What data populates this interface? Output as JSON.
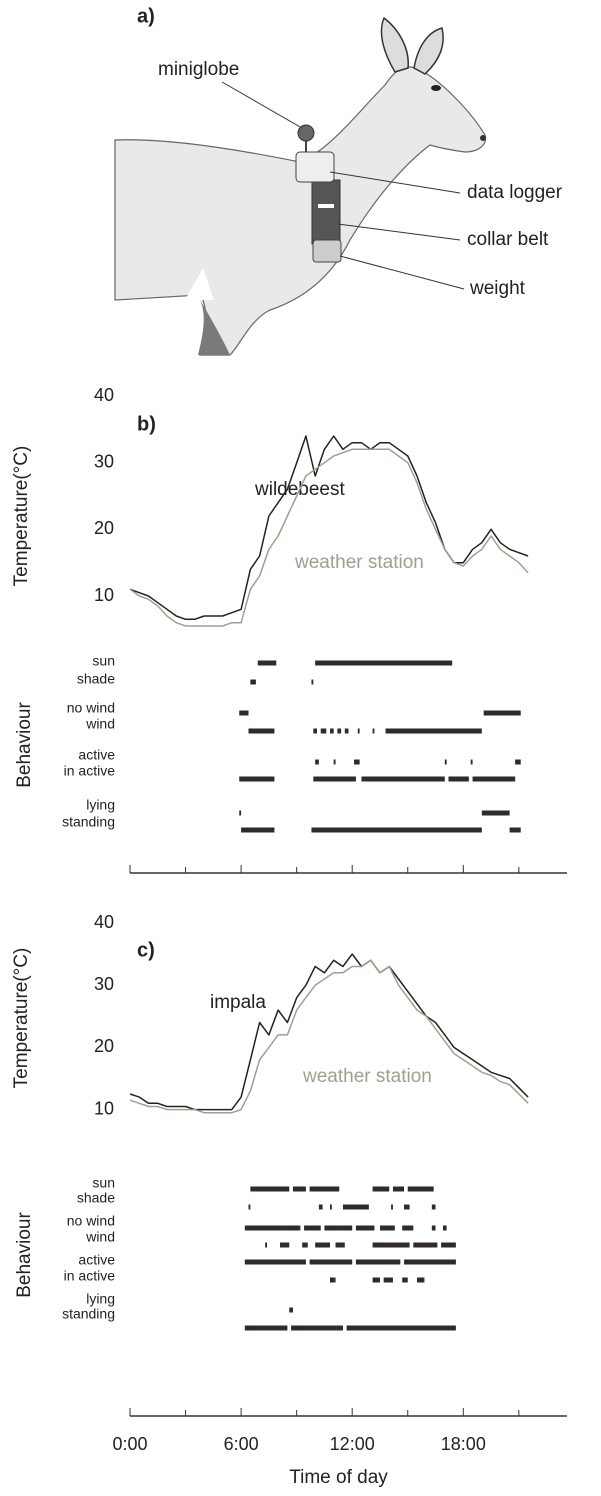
{
  "figure_a": {
    "panel_label": "a)",
    "labels": [
      "miniglobe",
      "data logger",
      "collar belt",
      "weight"
    ]
  },
  "chart_data": [
    {
      "type": "line",
      "panel_label": "b)",
      "ylabel": "Temperature(°C)",
      "behaviour_label": "Behaviour",
      "xlim": [
        0,
        23.6
      ],
      "xticks": [
        0,
        6,
        12,
        18
      ],
      "minor_xticks": [
        3,
        9,
        15,
        21
      ],
      "xtick_labels_shown": false,
      "ylim": [
        4,
        40
      ],
      "yticks": [
        10,
        20,
        30,
        40
      ],
      "x": [
        0,
        0.5,
        1,
        1.5,
        2,
        2.5,
        3,
        3.5,
        4,
        4.5,
        5,
        5.5,
        6,
        6.5,
        7,
        7.5,
        8,
        8.5,
        9,
        9.5,
        10,
        10.5,
        11,
        11.5,
        12,
        12.5,
        13,
        13.5,
        14,
        14.5,
        15,
        15.5,
        16,
        16.5,
        17,
        17.5,
        18,
        18.5,
        19,
        19.5,
        20,
        20.5,
        21,
        21.5
      ],
      "series": [
        {
          "name": "wildebeest",
          "color": "#222222",
          "values": [
            11,
            10.5,
            10,
            9,
            8,
            7,
            6.5,
            6.5,
            7,
            7,
            7,
            7.5,
            8,
            14,
            16,
            22,
            24,
            26,
            30,
            34,
            28,
            32,
            34,
            32,
            33,
            33,
            32,
            33,
            33,
            32,
            31,
            28,
            24,
            21,
            17,
            15,
            15,
            17,
            18,
            20,
            18,
            17,
            16.5,
            16
          ]
        },
        {
          "name": "weather station",
          "color": "#a39e8c",
          "values": [
            11,
            10,
            9.5,
            8.5,
            7,
            6,
            5.5,
            5.5,
            5.5,
            5.5,
            5.5,
            6,
            6,
            11,
            13,
            17,
            19,
            22,
            25,
            28,
            29,
            30,
            31,
            31.5,
            32,
            32,
            32,
            32,
            32,
            31,
            30,
            27,
            23,
            20,
            17,
            15,
            14.5,
            16,
            17,
            19,
            17,
            16,
            15,
            13.5
          ]
        }
      ],
      "behaviour": [
        {
          "label": "sun",
          "intervals": [
            [
              6.9,
              7.9
            ],
            [
              10.0,
              17.4
            ]
          ]
        },
        {
          "label": "shade",
          "intervals": [
            [
              6.5,
              6.8
            ],
            [
              9.8,
              9.9
            ]
          ]
        },
        {
          "label": "no wind",
          "intervals": [
            [
              5.9,
              6.4
            ],
            [
              19.1,
              21.1
            ]
          ]
        },
        {
          "label": "wind",
          "intervals": [
            [
              6.4,
              7.8
            ],
            [
              9.9,
              10.1
            ],
            [
              10.3,
              10.6
            ],
            [
              10.8,
              11.0
            ],
            [
              11.2,
              11.4
            ],
            [
              11.6,
              11.8
            ],
            [
              12.3,
              12.4
            ],
            [
              13.1,
              13.2
            ],
            [
              13.8,
              19.0
            ]
          ]
        },
        {
          "label": "active",
          "intervals": [
            [
              10.0,
              10.2
            ],
            [
              11.0,
              11.1
            ],
            [
              12.1,
              12.4
            ],
            [
              17.0,
              17.1
            ],
            [
              18.4,
              18.5
            ],
            [
              20.8,
              21.1
            ]
          ]
        },
        {
          "label": "in active",
          "intervals": [
            [
              5.9,
              7.8
            ],
            [
              9.9,
              12.2
            ],
            [
              12.5,
              17.0
            ],
            [
              17.2,
              18.3
            ],
            [
              18.5,
              20.8
            ]
          ]
        },
        {
          "label": "lying",
          "intervals": [
            [
              5.9,
              6.0
            ],
            [
              19.0,
              20.5
            ]
          ]
        },
        {
          "label": "standing",
          "intervals": [
            [
              6.0,
              7.8
            ],
            [
              9.8,
              19.0
            ],
            [
              20.5,
              21.1
            ]
          ]
        }
      ]
    },
    {
      "type": "line",
      "panel_label": "c)",
      "ylabel": "Temperature(°C)",
      "behaviour_label": "Behaviour",
      "xlabel": "Time of day",
      "xlim": [
        0,
        23.6
      ],
      "xticks": [
        {
          "value": 0,
          "label": "0:00"
        },
        {
          "value": 6,
          "label": "6:00"
        },
        {
          "value": 12,
          "label": "12:00"
        },
        {
          "value": 18,
          "label": "18:00"
        }
      ],
      "minor_xticks": [
        3,
        9,
        15,
        21
      ],
      "xtick_labels_shown": true,
      "ylim": [
        8,
        40
      ],
      "yticks": [
        10,
        20,
        30,
        40
      ],
      "x": [
        0,
        0.5,
        1,
        1.5,
        2,
        2.5,
        3,
        3.5,
        4,
        4.5,
        5,
        5.5,
        6,
        6.5,
        7,
        7.5,
        8,
        8.5,
        9,
        9.5,
        10,
        10.5,
        11,
        11.5,
        12,
        12.5,
        13,
        13.5,
        14,
        14.5,
        15,
        15.5,
        16,
        16.5,
        17,
        17.5,
        18,
        18.5,
        19,
        19.5,
        20,
        20.5,
        21,
        21.5
      ],
      "series": [
        {
          "name": "impala",
          "color": "#222222",
          "values": [
            12.5,
            12,
            11,
            11,
            10.5,
            10.5,
            10.5,
            10,
            10,
            10,
            10,
            10,
            12,
            18,
            24,
            22,
            26,
            24,
            28,
            30,
            33,
            32,
            34,
            33,
            35,
            33,
            34,
            32,
            33,
            31,
            29,
            27,
            25,
            24,
            22,
            20,
            19,
            18,
            17,
            16,
            15.5,
            15,
            13.5,
            12
          ]
        },
        {
          "name": "weather station",
          "color": "#a39e8c",
          "values": [
            11.5,
            11,
            10.5,
            10.5,
            10,
            10,
            10,
            10,
            9.5,
            9.5,
            9.5,
            9.5,
            10,
            13,
            18,
            20,
            22,
            22,
            26,
            28,
            30,
            31,
            32,
            32,
            33,
            33,
            34,
            32,
            33,
            30,
            28,
            26,
            25,
            23,
            21,
            19,
            18,
            17,
            16,
            15.5,
            14.5,
            14,
            12.5,
            11
          ]
        }
      ],
      "behaviour": [
        {
          "label": "sun",
          "intervals": [
            [
              6.5,
              8.6
            ],
            [
              8.8,
              9.5
            ],
            [
              9.7,
              11.3
            ],
            [
              13.1,
              14.0
            ],
            [
              14.2,
              14.8
            ],
            [
              15.0,
              16.4
            ]
          ]
        },
        {
          "label": "shade",
          "intervals": [
            [
              6.4,
              6.5
            ],
            [
              10.2,
              10.4
            ],
            [
              10.8,
              10.9
            ],
            [
              11.5,
              12.9
            ],
            [
              14.1,
              14.2
            ],
            [
              14.8,
              15.1
            ],
            [
              16.3,
              16.5
            ]
          ]
        },
        {
          "label": "no wind",
          "intervals": [
            [
              6.2,
              9.2
            ],
            [
              9.4,
              10.3
            ],
            [
              10.5,
              12.0
            ],
            [
              12.2,
              13.2
            ],
            [
              13.5,
              14.3
            ],
            [
              14.7,
              15.3
            ],
            [
              16.3,
              16.5
            ],
            [
              16.9,
              17.1
            ]
          ]
        },
        {
          "label": "wind",
          "intervals": [
            [
              7.3,
              7.4
            ],
            [
              8.1,
              8.6
            ],
            [
              9.3,
              9.6
            ],
            [
              10.0,
              10.8
            ],
            [
              11.1,
              11.6
            ],
            [
              13.1,
              15.1
            ],
            [
              15.3,
              16.6
            ],
            [
              16.8,
              17.6
            ]
          ]
        },
        {
          "label": "active",
          "intervals": [
            [
              6.2,
              9.5
            ],
            [
              9.7,
              12.0
            ],
            [
              12.2,
              14.6
            ],
            [
              14.8,
              17.6
            ]
          ]
        },
        {
          "label": "in active",
          "intervals": [
            [
              10.8,
              11.1
            ],
            [
              13.1,
              13.5
            ],
            [
              13.7,
              14.2
            ],
            [
              14.7,
              15.0
            ],
            [
              15.5,
              15.9
            ]
          ]
        },
        {
          "label": "lying",
          "intervals": [
            [
              8.6,
              8.8
            ]
          ]
        },
        {
          "label": "standing",
          "intervals": [
            [
              6.2,
              8.5
            ],
            [
              8.7,
              11.5
            ],
            [
              11.7,
              17.6
            ]
          ]
        }
      ]
    }
  ]
}
